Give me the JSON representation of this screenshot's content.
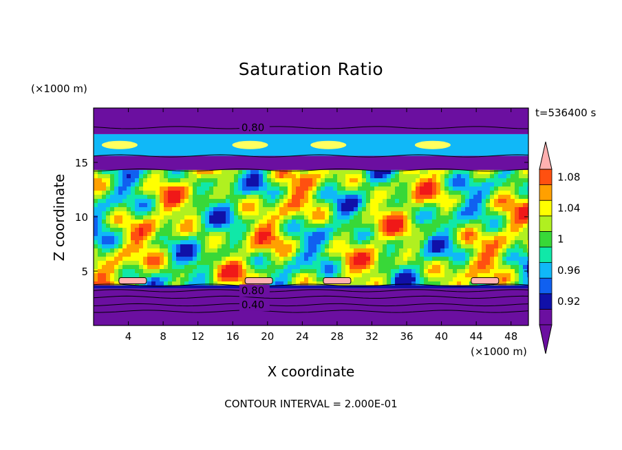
{
  "chart_data": {
    "type": "heatmap",
    "title": "Saturation Ratio",
    "xlabel": "X coordinate",
    "ylabel": "Z coordinate",
    "x_unit": "(×1000 m)",
    "z_unit": "(×1000 m)",
    "time_label": "t=536400 s",
    "footer": "CONTOUR INTERVAL = 2.000E-01",
    "xlim": [
      0,
      50
    ],
    "ylim": [
      0,
      20
    ],
    "x_ticks": [
      4,
      8,
      12,
      16,
      20,
      24,
      28,
      32,
      36,
      40,
      44,
      48
    ],
    "y_ticks": [
      5,
      10,
      15
    ],
    "contour_labels": [
      {
        "text": "0.80",
        "x": 17,
        "z": 18.2
      },
      {
        "text": "0.80",
        "x": 17,
        "z": 3.2
      },
      {
        "text": "0.40",
        "x": 17,
        "z": 1.9
      }
    ],
    "colorbar": {
      "levels": [
        0.9,
        0.92,
        0.94,
        0.96,
        0.98,
        1.0,
        1.02,
        1.04,
        1.06,
        1.08,
        1.1
      ],
      "tick_labels": [
        "0.92",
        "0.96",
        "1",
        "1.04",
        "1.08"
      ],
      "tick_values": [
        0.92,
        0.96,
        1.0,
        1.04,
        1.08
      ],
      "colors": [
        "#6b0fa0",
        "#1010a8",
        "#1060f0",
        "#10b8f8",
        "#10e8a8",
        "#38d838",
        "#b0f020",
        "#ffff00",
        "#ffa000",
        "#ff5010",
        "#f01818"
      ],
      "under_color": "#6b0fa0",
      "over_color": "#ffb0b0"
    },
    "bands": [
      {
        "z0": 0,
        "z1": 2.5,
        "color": "#6b0fa0"
      },
      {
        "z0": 2.5,
        "z1": 3.4,
        "color": "#6b0fa0"
      },
      {
        "z0": 3.4,
        "z1": 3.7,
        "color": "#1010a8"
      },
      {
        "z0": 14.3,
        "z1": 15.6,
        "color": "#6b0fa0"
      },
      {
        "z0": 15.6,
        "z1": 17.6,
        "color": "#10b8f8"
      },
      {
        "z0": 17.6,
        "z1": 20,
        "color": "#6b0fa0"
      }
    ]
  }
}
